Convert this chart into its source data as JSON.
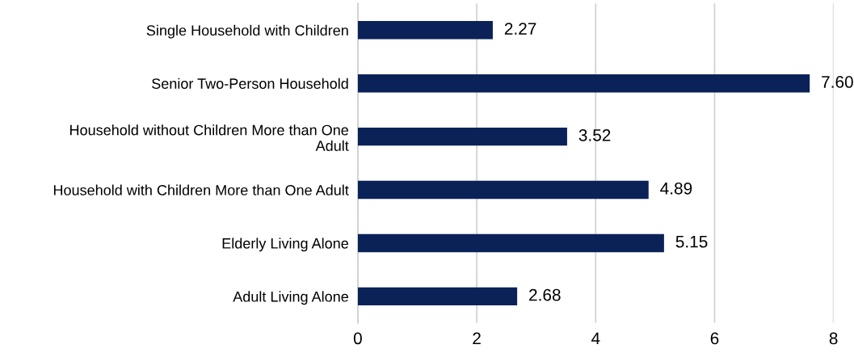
{
  "chart_data": {
    "type": "bar",
    "orientation": "horizontal",
    "categories": [
      "Single Household with Children",
      "Senior Two-Person Household",
      "Household without Children More than One\nAdult",
      "Household with Children More than One Adult",
      "Elderly Living Alone",
      "Adult Living Alone"
    ],
    "values": [
      2.27,
      7.6,
      3.52,
      4.89,
      5.15,
      2.68
    ],
    "value_labels": [
      "2.27",
      "7.60",
      "3.52",
      "4.89",
      "5.15",
      "2.68"
    ],
    "color": "#0b2259",
    "xlim": [
      0,
      8
    ],
    "xticks": [
      0,
      2,
      4,
      6,
      8
    ],
    "grid": "x",
    "legend": false
  }
}
